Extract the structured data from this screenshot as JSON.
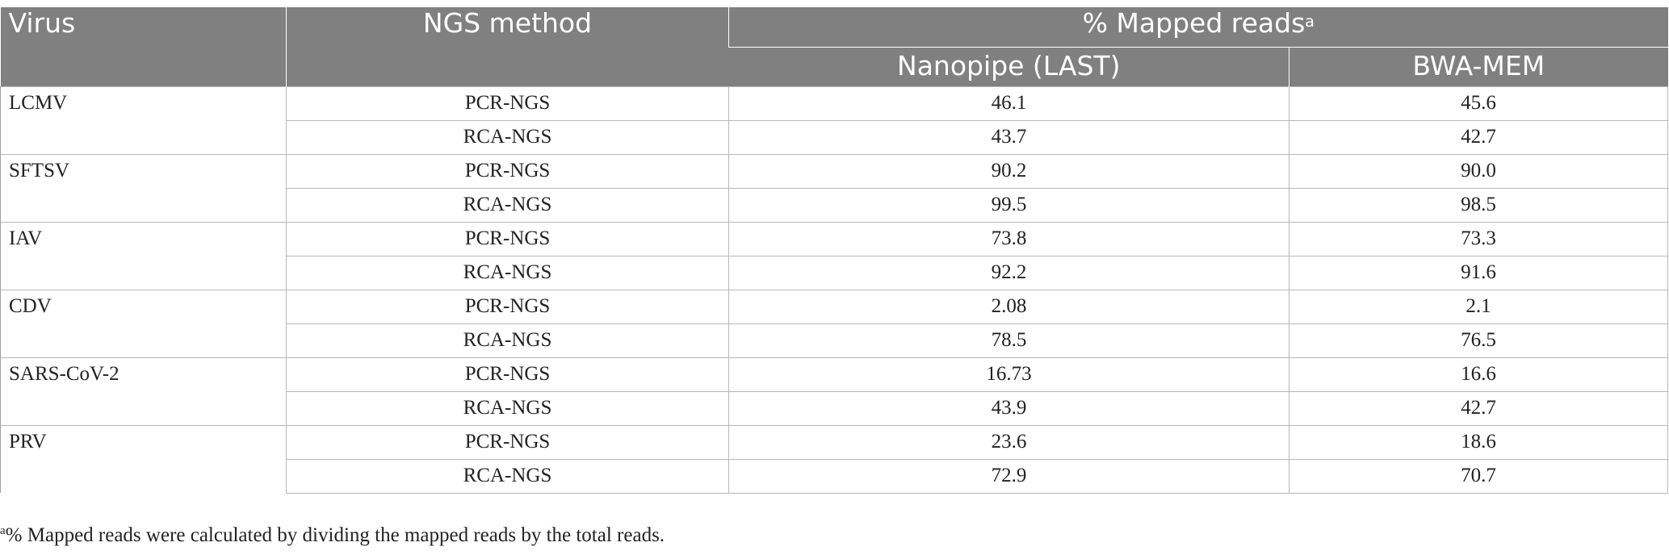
{
  "table": {
    "headers": {
      "virus": "Virus",
      "ngs_method": "NGS method",
      "mapped_reads": "% Mapped reads",
      "mapped_reads_footnote_marker": "a",
      "nanopipe": "Nanopipe (LAST)",
      "bwa_mem": "BWA-MEM"
    },
    "rows": [
      {
        "virus": "LCMV",
        "methods": [
          {
            "method": "PCR-NGS",
            "nanopipe": "46.1",
            "bwa_mem": "45.6"
          },
          {
            "method": "RCA-NGS",
            "nanopipe": "43.7",
            "bwa_mem": "42.7"
          }
        ]
      },
      {
        "virus": "SFTSV",
        "methods": [
          {
            "method": "PCR-NGS",
            "nanopipe": "90.2",
            "bwa_mem": "90.0"
          },
          {
            "method": "RCA-NGS",
            "nanopipe": "99.5",
            "bwa_mem": "98.5"
          }
        ]
      },
      {
        "virus": "IAV",
        "methods": [
          {
            "method": "PCR-NGS",
            "nanopipe": "73.8",
            "bwa_mem": "73.3"
          },
          {
            "method": "RCA-NGS",
            "nanopipe": "92.2",
            "bwa_mem": "91.6"
          }
        ]
      },
      {
        "virus": "CDV",
        "methods": [
          {
            "method": "PCR-NGS",
            "nanopipe": "2.08",
            "bwa_mem": "2.1"
          },
          {
            "method": "RCA-NGS",
            "nanopipe": "78.5",
            "bwa_mem": "76.5"
          }
        ]
      },
      {
        "virus": "SARS-CoV-2",
        "methods": [
          {
            "method": "PCR-NGS",
            "nanopipe": "16.73",
            "bwa_mem": "16.6"
          },
          {
            "method": "RCA-NGS",
            "nanopipe": "43.9",
            "bwa_mem": "42.7"
          }
        ]
      },
      {
        "virus": "PRV",
        "methods": [
          {
            "method": "PCR-NGS",
            "nanopipe": "23.6",
            "bwa_mem": "18.6"
          },
          {
            "method": "RCA-NGS",
            "nanopipe": "72.9",
            "bwa_mem": "70.7"
          }
        ]
      }
    ]
  },
  "footnote": {
    "marker": "a",
    "text": "% Mapped reads were calculated by dividing the mapped reads by the total reads."
  }
}
